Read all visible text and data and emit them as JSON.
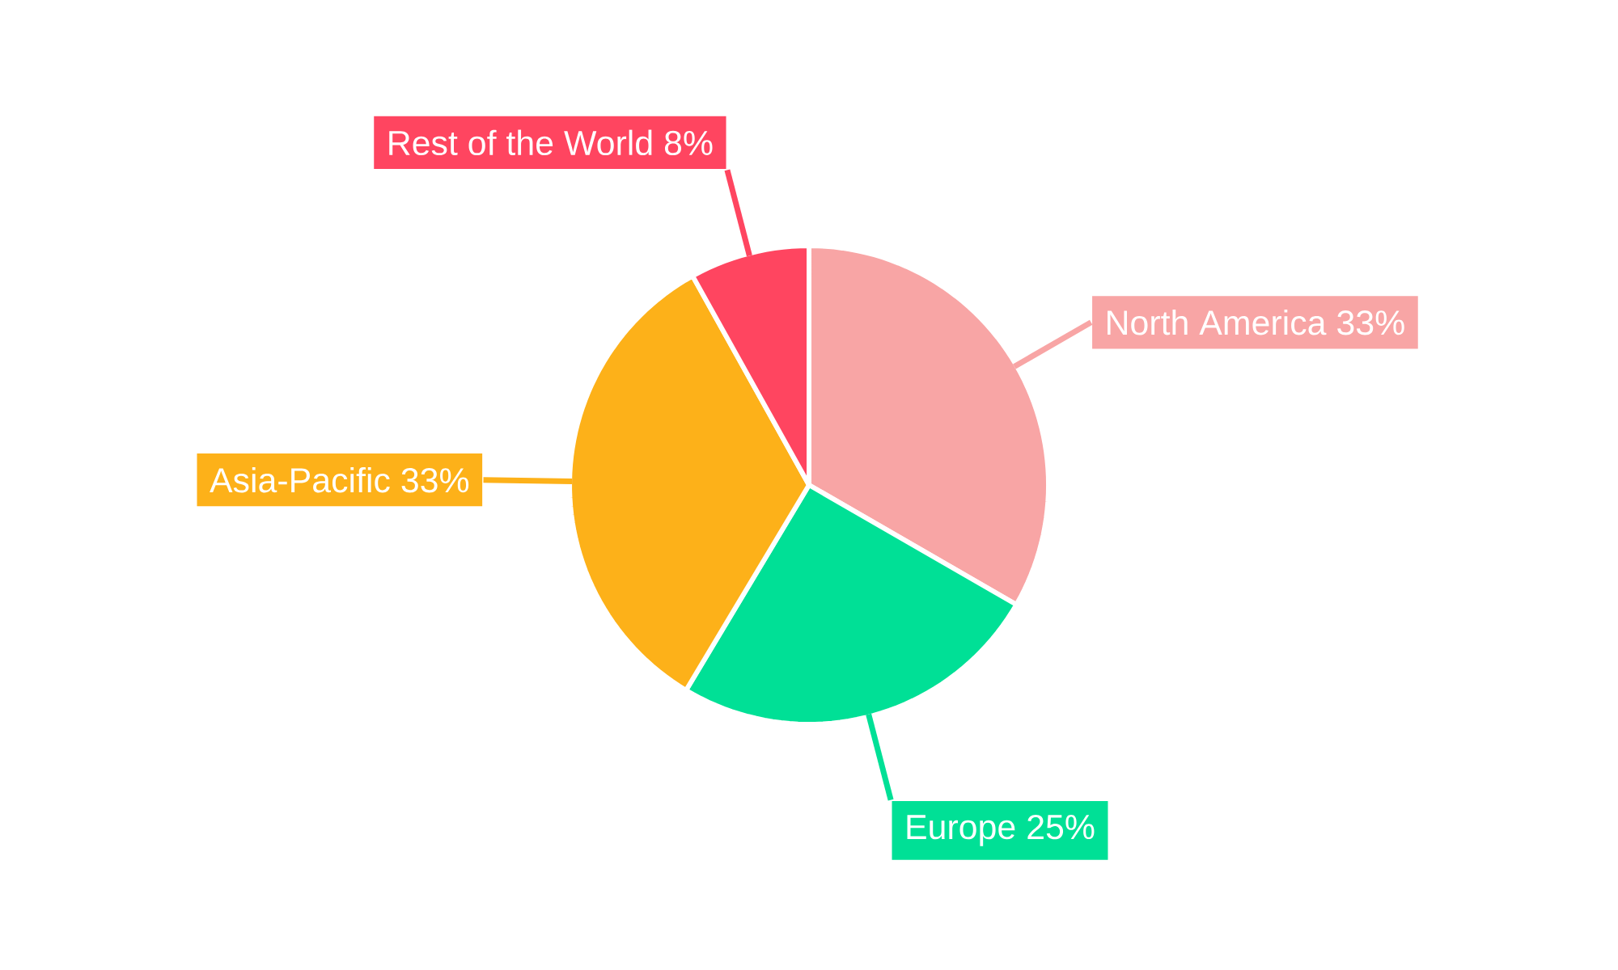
{
  "chart_data": {
    "type": "pie",
    "categories": [
      "North America",
      "Europe",
      "Asia-Pacific",
      "Rest of the World"
    ],
    "values": [
      33,
      25,
      33,
      8
    ],
    "value_labels": [
      "33%",
      "25%",
      "33%",
      "8%"
    ],
    "colors": [
      "#f8a5a5",
      "#00e096",
      "#fdb119",
      "#ff4560"
    ]
  }
}
